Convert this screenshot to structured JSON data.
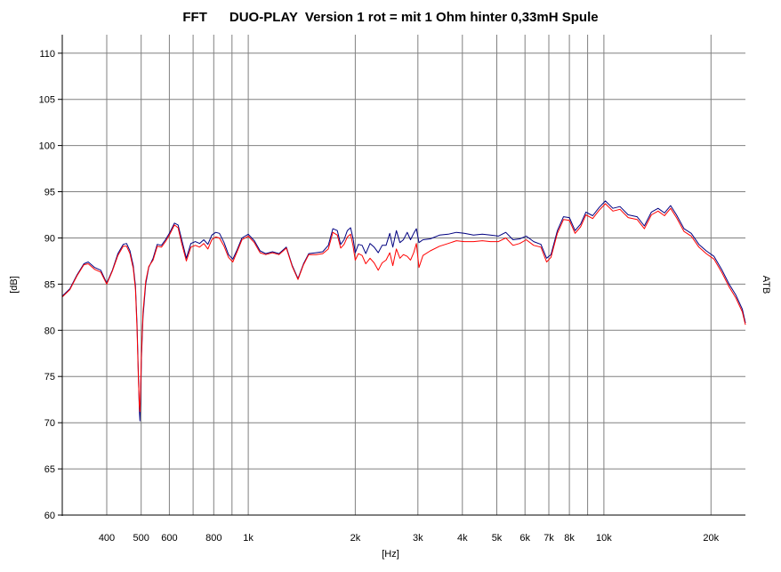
{
  "chart_data": {
    "type": "line",
    "title": "FFT      DUO-PLAY  Version 1 rot = mit 1 Ohm hinter 0,33mH Spule",
    "xlabel": "[Hz]",
    "ylabel": "[dB]",
    "right_label": "ATB",
    "x_scale": "log",
    "xlim": [
      300,
      25000
    ],
    "ylim": [
      60,
      112
    ],
    "grid": true,
    "x_ticks": [
      {
        "value": 400,
        "label": "400"
      },
      {
        "value": 500,
        "label": "500"
      },
      {
        "value": 600,
        "label": "600"
      },
      {
        "value": 800,
        "label": "800"
      },
      {
        "value": 1000,
        "label": "1k"
      },
      {
        "value": 2000,
        "label": "2k"
      },
      {
        "value": 3000,
        "label": "3k"
      },
      {
        "value": 4000,
        "label": "4k"
      },
      {
        "value": 5000,
        "label": "5k"
      },
      {
        "value": 6000,
        "label": "6k"
      },
      {
        "value": 7000,
        "label": "7k"
      },
      {
        "value": 8000,
        "label": "8k"
      },
      {
        "value": 10000,
        "label": "10k"
      },
      {
        "value": 20000,
        "label": "20k"
      }
    ],
    "x_gridlines": [
      400,
      500,
      600,
      700,
      800,
      900,
      1000,
      2000,
      3000,
      4000,
      5000,
      6000,
      7000,
      8000,
      9000,
      10000,
      20000
    ],
    "y_ticks": [
      {
        "value": 60,
        "label": "60"
      },
      {
        "value": 65,
        "label": "65"
      },
      {
        "value": 70,
        "label": "70"
      },
      {
        "value": 75,
        "label": "75"
      },
      {
        "value": 80,
        "label": "80"
      },
      {
        "value": 85,
        "label": "85"
      },
      {
        "value": 90,
        "label": "90"
      },
      {
        "value": 95,
        "label": "95"
      },
      {
        "value": 100,
        "label": "100"
      },
      {
        "value": 105,
        "label": "105"
      },
      {
        "value": 110,
        "label": "110"
      }
    ],
    "series": [
      {
        "color": "#000080",
        "points": [
          [
            300,
            83.7
          ],
          [
            315,
            84.5
          ],
          [
            330,
            86.0
          ],
          [
            345,
            87.2
          ],
          [
            355,
            87.4
          ],
          [
            370,
            86.8
          ],
          [
            385,
            86.5
          ],
          [
            400,
            85.1
          ],
          [
            415,
            86.5
          ],
          [
            430,
            88.3
          ],
          [
            445,
            89.3
          ],
          [
            455,
            89.4
          ],
          [
            465,
            88.6
          ],
          [
            475,
            87.0
          ],
          [
            482,
            84.8
          ],
          [
            487,
            80.5
          ],
          [
            491,
            75.5
          ],
          [
            494,
            71.5
          ],
          [
            496,
            70.2
          ],
          [
            498,
            72.5
          ],
          [
            501,
            77.0
          ],
          [
            506,
            81.5
          ],
          [
            515,
            85.0
          ],
          [
            525,
            86.8
          ],
          [
            540,
            87.8
          ],
          [
            555,
            89.3
          ],
          [
            570,
            89.2
          ],
          [
            585,
            89.8
          ],
          [
            600,
            90.5
          ],
          [
            620,
            91.6
          ],
          [
            635,
            91.4
          ],
          [
            650,
            89.8
          ],
          [
            670,
            87.8
          ],
          [
            690,
            89.4
          ],
          [
            710,
            89.6
          ],
          [
            730,
            89.4
          ],
          [
            750,
            89.8
          ],
          [
            770,
            89.3
          ],
          [
            790,
            90.3
          ],
          [
            810,
            90.6
          ],
          [
            830,
            90.5
          ],
          [
            855,
            89.5
          ],
          [
            880,
            88.2
          ],
          [
            905,
            87.7
          ],
          [
            930,
            88.7
          ],
          [
            960,
            90.0
          ],
          [
            1000,
            90.4
          ],
          [
            1040,
            89.7
          ],
          [
            1080,
            88.6
          ],
          [
            1120,
            88.3
          ],
          [
            1170,
            88.5
          ],
          [
            1220,
            88.3
          ],
          [
            1280,
            89.0
          ],
          [
            1330,
            87.0
          ],
          [
            1380,
            85.6
          ],
          [
            1430,
            87.2
          ],
          [
            1480,
            88.3
          ],
          [
            1550,
            88.4
          ],
          [
            1620,
            88.5
          ],
          [
            1680,
            89.2
          ],
          [
            1730,
            91.0
          ],
          [
            1780,
            90.8
          ],
          [
            1820,
            89.3
          ],
          [
            1860,
            89.8
          ],
          [
            1900,
            90.8
          ],
          [
            1940,
            91.1
          ],
          [
            1970,
            90.0
          ],
          [
            2000,
            88.4
          ],
          [
            2040,
            89.3
          ],
          [
            2090,
            89.2
          ],
          [
            2140,
            88.3
          ],
          [
            2200,
            89.4
          ],
          [
            2260,
            89.0
          ],
          [
            2320,
            88.4
          ],
          [
            2380,
            89.2
          ],
          [
            2440,
            89.2
          ],
          [
            2500,
            90.5
          ],
          [
            2550,
            89.0
          ],
          [
            2610,
            90.8
          ],
          [
            2670,
            89.5
          ],
          [
            2730,
            89.8
          ],
          [
            2800,
            90.6
          ],
          [
            2860,
            89.8
          ],
          [
            2920,
            90.5
          ],
          [
            2970,
            91.0
          ],
          [
            3020,
            89.5
          ],
          [
            3100,
            89.8
          ],
          [
            3250,
            89.9
          ],
          [
            3450,
            90.3
          ],
          [
            3650,
            90.4
          ],
          [
            3850,
            90.6
          ],
          [
            4050,
            90.5
          ],
          [
            4300,
            90.3
          ],
          [
            4550,
            90.4
          ],
          [
            4800,
            90.3
          ],
          [
            5050,
            90.2
          ],
          [
            5300,
            90.6
          ],
          [
            5550,
            89.8
          ],
          [
            5800,
            89.9
          ],
          [
            6050,
            90.2
          ],
          [
            6350,
            89.6
          ],
          [
            6650,
            89.3
          ],
          [
            6900,
            87.8
          ],
          [
            7100,
            88.2
          ],
          [
            7400,
            90.8
          ],
          [
            7700,
            92.3
          ],
          [
            8000,
            92.2
          ],
          [
            8300,
            90.8
          ],
          [
            8600,
            91.5
          ],
          [
            8900,
            92.8
          ],
          [
            9300,
            92.4
          ],
          [
            9700,
            93.3
          ],
          [
            10100,
            94.0
          ],
          [
            10600,
            93.2
          ],
          [
            11100,
            93.4
          ],
          [
            11700,
            92.5
          ],
          [
            12400,
            92.3
          ],
          [
            13000,
            91.3
          ],
          [
            13600,
            92.8
          ],
          [
            14200,
            93.2
          ],
          [
            14800,
            92.7
          ],
          [
            15400,
            93.5
          ],
          [
            16000,
            92.5
          ],
          [
            16800,
            91.0
          ],
          [
            17600,
            90.5
          ],
          [
            18500,
            89.3
          ],
          [
            19400,
            88.6
          ],
          [
            20400,
            88.0
          ],
          [
            21500,
            86.5
          ],
          [
            22500,
            85.0
          ],
          [
            23500,
            83.8
          ],
          [
            24500,
            82.3
          ],
          [
            25000,
            80.8
          ]
        ]
      },
      {
        "color": "#ff0000",
        "points": [
          [
            300,
            83.6
          ],
          [
            315,
            84.4
          ],
          [
            330,
            85.9
          ],
          [
            345,
            87.1
          ],
          [
            355,
            87.2
          ],
          [
            370,
            86.6
          ],
          [
            385,
            86.3
          ],
          [
            400,
            85.0
          ],
          [
            415,
            86.4
          ],
          [
            430,
            88.1
          ],
          [
            445,
            89.1
          ],
          [
            455,
            89.1
          ],
          [
            465,
            88.3
          ],
          [
            475,
            86.7
          ],
          [
            482,
            84.4
          ],
          [
            487,
            80.0
          ],
          [
            491,
            75.0
          ],
          [
            494,
            72.0
          ],
          [
            496,
            71.2
          ],
          [
            498,
            73.5
          ],
          [
            501,
            77.5
          ],
          [
            506,
            82.0
          ],
          [
            515,
            85.3
          ],
          [
            525,
            86.9
          ],
          [
            540,
            87.6
          ],
          [
            555,
            89.1
          ],
          [
            570,
            89.0
          ],
          [
            585,
            89.6
          ],
          [
            600,
            90.3
          ],
          [
            620,
            91.4
          ],
          [
            635,
            91.1
          ],
          [
            650,
            89.4
          ],
          [
            670,
            87.5
          ],
          [
            690,
            89.0
          ],
          [
            710,
            89.2
          ],
          [
            730,
            89.0
          ],
          [
            750,
            89.4
          ],
          [
            770,
            88.8
          ],
          [
            790,
            89.8
          ],
          [
            810,
            90.1
          ],
          [
            830,
            90.0
          ],
          [
            855,
            89.1
          ],
          [
            880,
            87.9
          ],
          [
            905,
            87.4
          ],
          [
            930,
            88.5
          ],
          [
            960,
            89.8
          ],
          [
            1000,
            90.2
          ],
          [
            1040,
            89.5
          ],
          [
            1080,
            88.4
          ],
          [
            1120,
            88.2
          ],
          [
            1170,
            88.4
          ],
          [
            1220,
            88.2
          ],
          [
            1280,
            88.9
          ],
          [
            1330,
            86.9
          ],
          [
            1380,
            85.5
          ],
          [
            1430,
            87.1
          ],
          [
            1480,
            88.2
          ],
          [
            1550,
            88.2
          ],
          [
            1620,
            88.3
          ],
          [
            1680,
            88.8
          ],
          [
            1730,
            90.6
          ],
          [
            1780,
            90.3
          ],
          [
            1820,
            88.9
          ],
          [
            1860,
            89.3
          ],
          [
            1900,
            90.1
          ],
          [
            1940,
            90.4
          ],
          [
            1970,
            89.2
          ],
          [
            2000,
            87.6
          ],
          [
            2040,
            88.3
          ],
          [
            2090,
            88.1
          ],
          [
            2140,
            87.2
          ],
          [
            2200,
            87.8
          ],
          [
            2260,
            87.3
          ],
          [
            2320,
            86.5
          ],
          [
            2380,
            87.3
          ],
          [
            2440,
            87.6
          ],
          [
            2500,
            88.4
          ],
          [
            2550,
            87.0
          ],
          [
            2610,
            88.8
          ],
          [
            2670,
            87.8
          ],
          [
            2730,
            88.2
          ],
          [
            2800,
            88.0
          ],
          [
            2860,
            87.6
          ],
          [
            2920,
            88.4
          ],
          [
            2970,
            89.4
          ],
          [
            3020,
            86.8
          ],
          [
            3100,
            88.1
          ],
          [
            3250,
            88.6
          ],
          [
            3450,
            89.1
          ],
          [
            3650,
            89.4
          ],
          [
            3850,
            89.7
          ],
          [
            4050,
            89.6
          ],
          [
            4300,
            89.6
          ],
          [
            4550,
            89.7
          ],
          [
            4800,
            89.6
          ],
          [
            5050,
            89.6
          ],
          [
            5300,
            90.0
          ],
          [
            5550,
            89.2
          ],
          [
            5800,
            89.4
          ],
          [
            6050,
            89.8
          ],
          [
            6350,
            89.2
          ],
          [
            6650,
            89.0
          ],
          [
            6900,
            87.4
          ],
          [
            7100,
            87.9
          ],
          [
            7400,
            90.5
          ],
          [
            7700,
            92.0
          ],
          [
            8000,
            91.9
          ],
          [
            8300,
            90.5
          ],
          [
            8600,
            91.2
          ],
          [
            8900,
            92.5
          ],
          [
            9300,
            92.1
          ],
          [
            9700,
            93.0
          ],
          [
            10100,
            93.7
          ],
          [
            10600,
            92.9
          ],
          [
            11100,
            93.1
          ],
          [
            11700,
            92.2
          ],
          [
            12400,
            92.0
          ],
          [
            13000,
            91.0
          ],
          [
            13600,
            92.5
          ],
          [
            14200,
            92.9
          ],
          [
            14800,
            92.4
          ],
          [
            15400,
            93.2
          ],
          [
            16000,
            92.2
          ],
          [
            16800,
            90.7
          ],
          [
            17600,
            90.2
          ],
          [
            18500,
            89.0
          ],
          [
            19400,
            88.3
          ],
          [
            20400,
            87.7
          ],
          [
            21500,
            86.2
          ],
          [
            22500,
            84.7
          ],
          [
            23500,
            83.5
          ],
          [
            24500,
            82.0
          ],
          [
            25000,
            80.6
          ]
        ]
      }
    ]
  },
  "colors": {
    "grid": "#808080",
    "axis": "#000000",
    "background": "#ffffff"
  }
}
